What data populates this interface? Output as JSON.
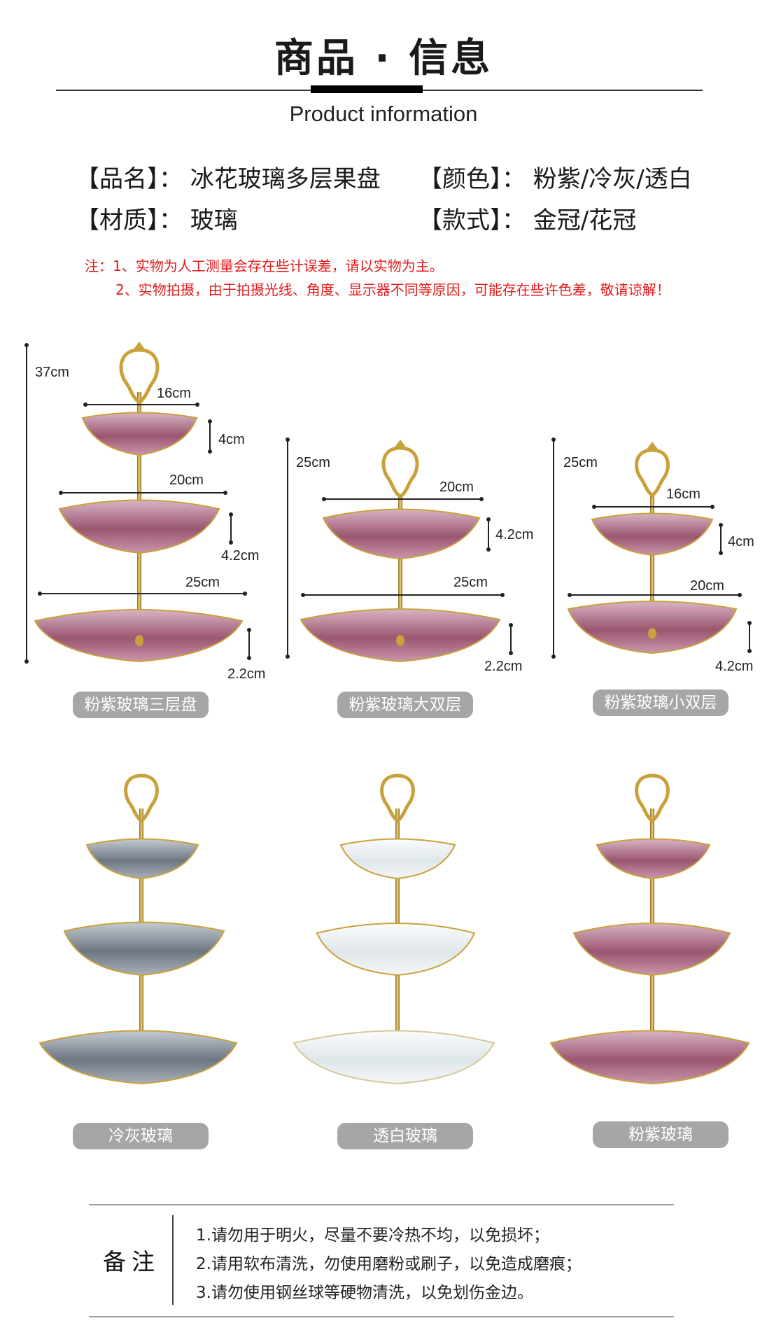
{
  "header": {
    "title": "商品 · 信息",
    "subtitle": "Product information"
  },
  "info": {
    "name": "【品名】： 冰花玻璃多层果盘",
    "color": "【颜色】： 粉紫/冷灰/透白",
    "material": "【材质】： 玻璃",
    "style": "【款式】： 金冠/花冠"
  },
  "notes": {
    "line1": "注：1、实物为人工测量会存在些计误差，请以实物为主。",
    "line2": "2、实物拍摄，由于拍摄光线、角度、显示器不同等原因，可能存在些许色差，敬请谅解！"
  },
  "products_dim": [
    {
      "caption": "粉紫玻璃三层盘",
      "dims": {
        "total_height": "37cm",
        "top_width": "16cm",
        "top_depth": "4cm",
        "mid_width": "20cm",
        "mid_depth": "4.2cm",
        "bottom_width": "25cm",
        "bottom_depth": "2.2cm"
      }
    },
    {
      "caption": "粉紫玻璃大双层",
      "dims": {
        "total_height": "25cm",
        "top_width": "20cm",
        "top_depth": "4.2cm",
        "bottom_width": "25cm",
        "bottom_depth": "2.2cm"
      }
    },
    {
      "caption": "粉紫玻璃小双层",
      "dims": {
        "total_height": "25cm",
        "top_width": "16cm",
        "top_depth": "4cm",
        "bottom_width": "20cm",
        "bottom_depth": "4.2cm"
      }
    }
  ],
  "products_color": [
    {
      "caption": "冷灰玻璃",
      "tint": "#6d7782"
    },
    {
      "caption": "透白玻璃",
      "tint": "#dfe6ea"
    },
    {
      "caption": "粉紫玻璃",
      "tint": "#9a5670"
    }
  ],
  "colors": {
    "note_red": "#e31b1b",
    "pink_glass": "#9a5670",
    "gold": "#c9a13b",
    "caption_bg": "#a6a6a6"
  },
  "remarks": {
    "label": "备注",
    "items": [
      "1.请勿用于明火，尽量不要冷热不均，以免损坏；",
      "2.请用软布清洗，勿使用磨粉或刷子，以免造成磨痕；",
      "3.请勿使用钢丝球等硬物清洗，以免划伤金边。"
    ]
  }
}
